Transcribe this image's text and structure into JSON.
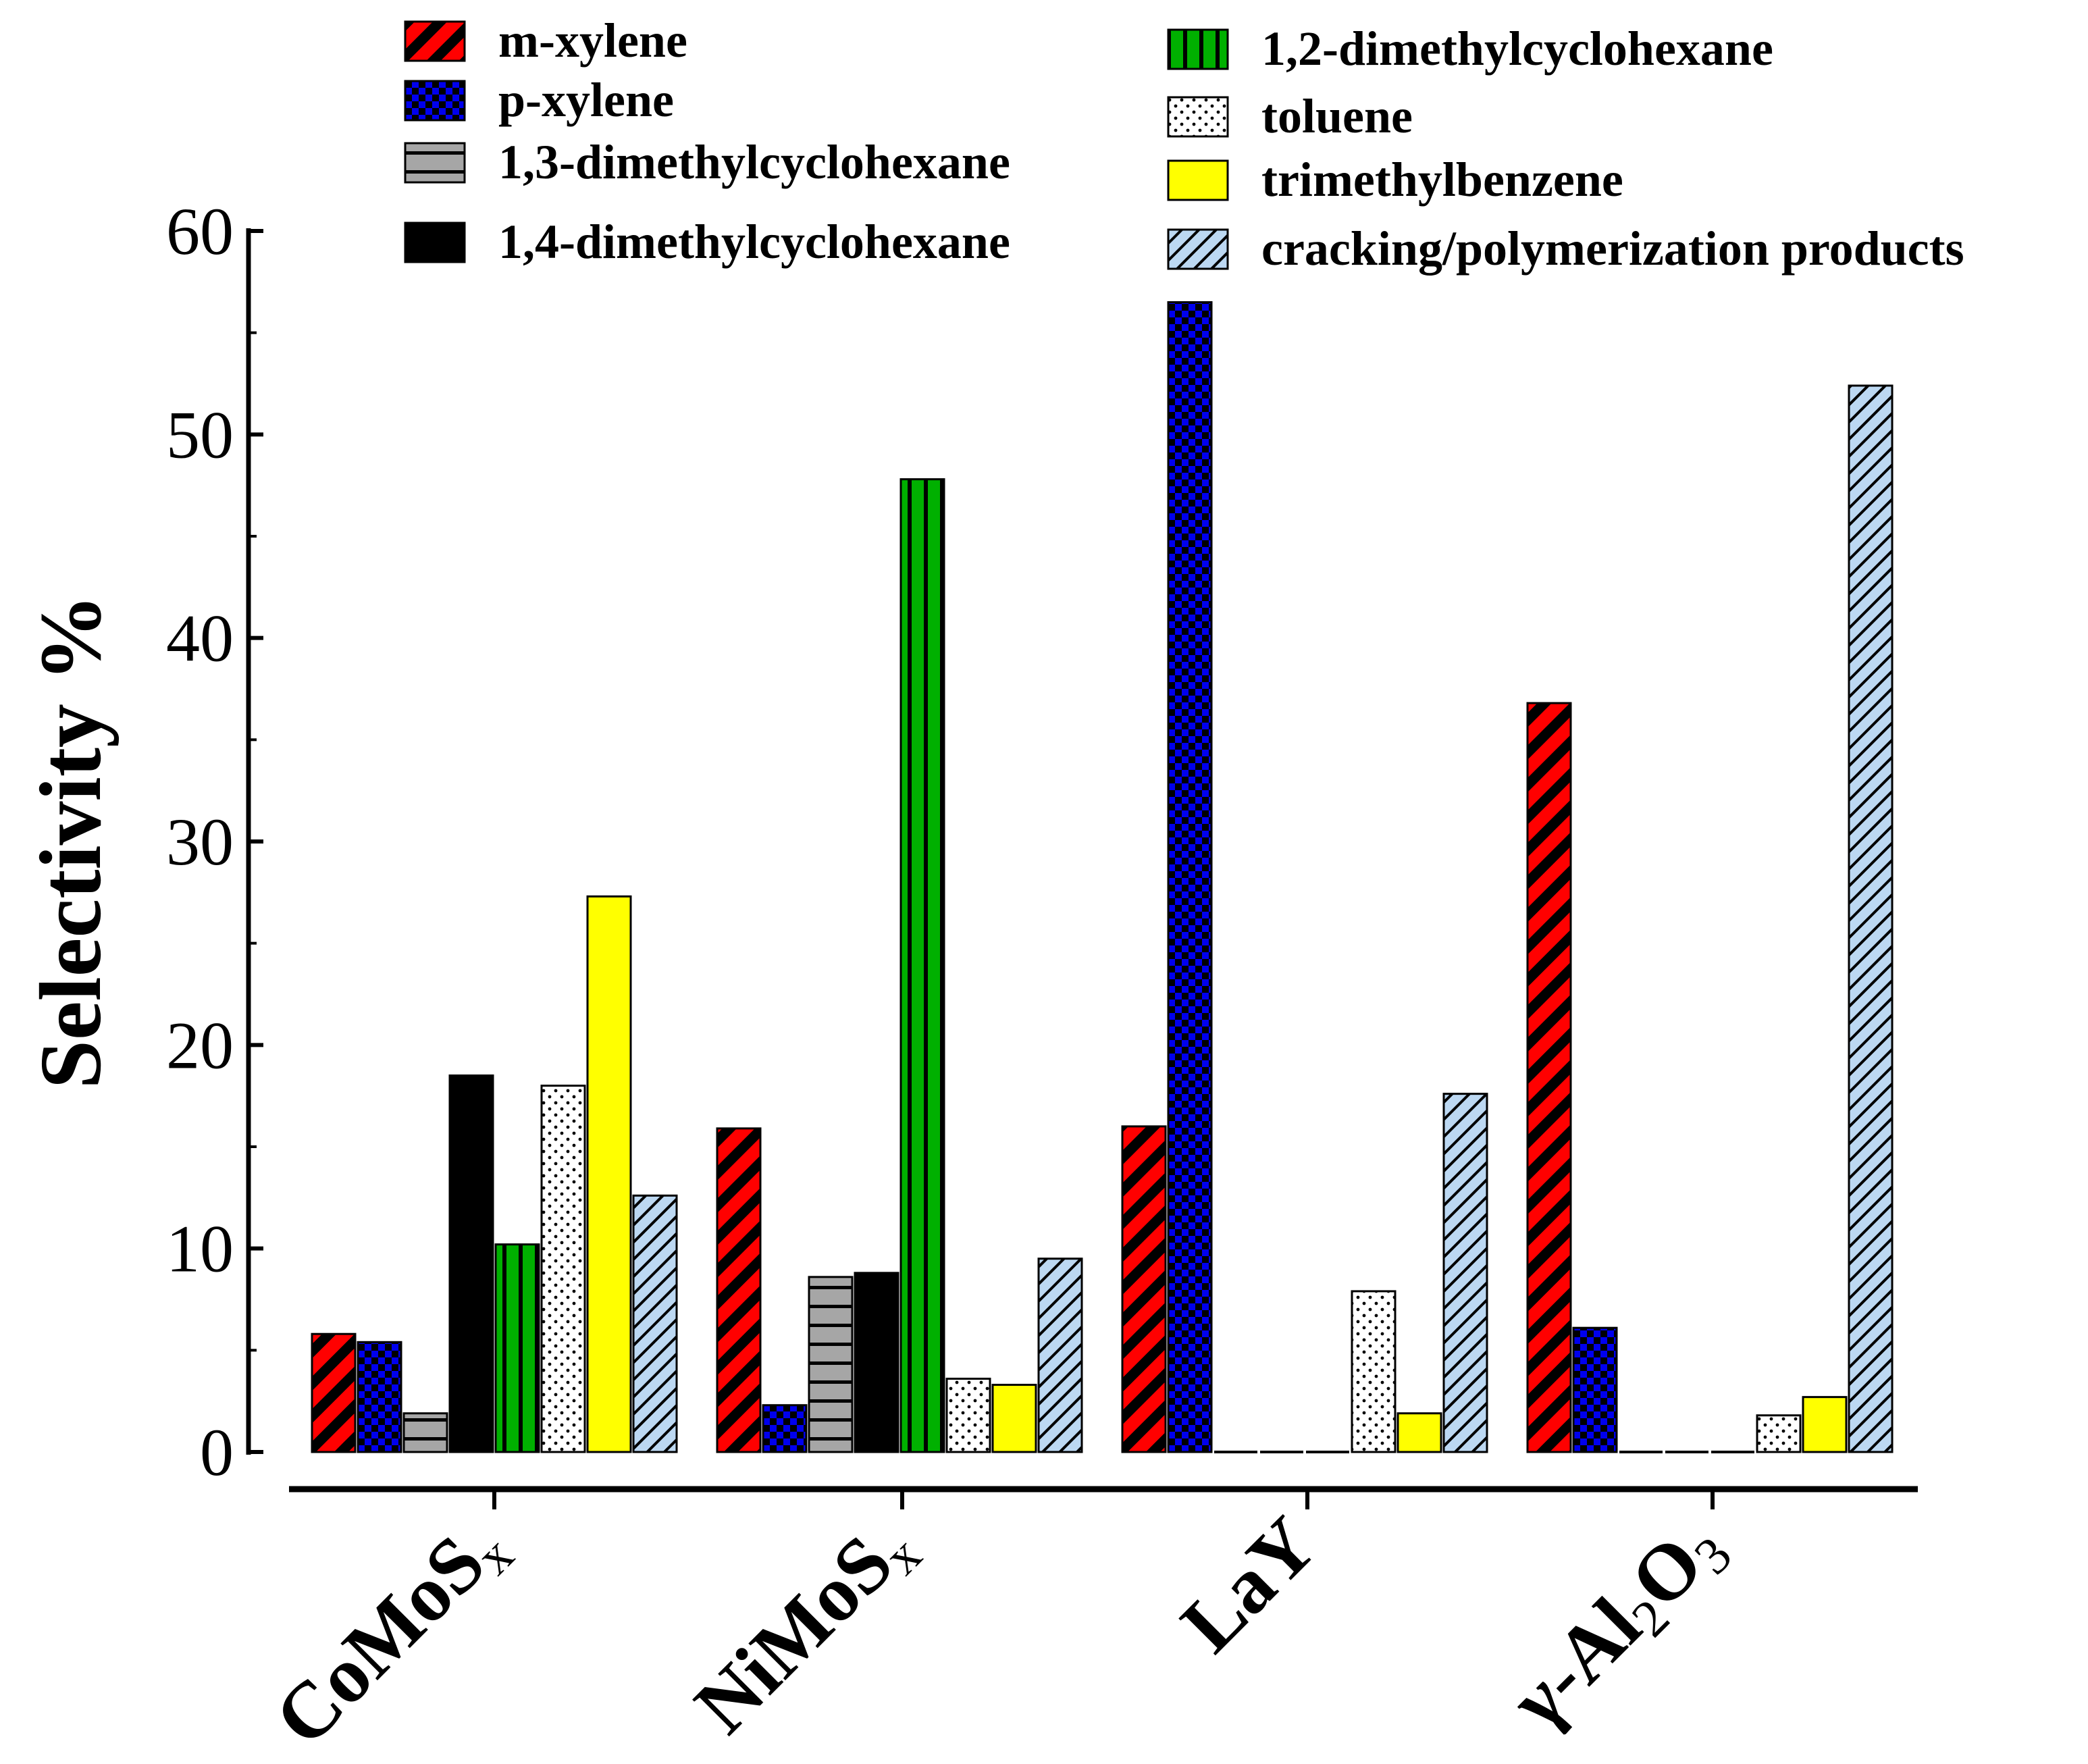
{
  "chart_data": {
    "type": "bar",
    "title": "",
    "xlabel": "",
    "ylabel": "Selectivity %",
    "ylim": [
      0,
      60
    ],
    "yticks": [
      0,
      10,
      20,
      30,
      40,
      50,
      60
    ],
    "grid": false,
    "legend_position": "top",
    "categories": [
      {
        "id": "CoMoSx",
        "base": "CoMoS",
        "sub": "x",
        "full": "CoMoSx"
      },
      {
        "id": "NiMoSx",
        "base": "NiMoS",
        "sub": "x",
        "full": "NiMoSx"
      },
      {
        "id": "LaY",
        "base": "LaY",
        "sub": "",
        "full": "LaY"
      },
      {
        "id": "gamma-Al2O3",
        "base": "γ-Al",
        "sub": "2",
        "base2": "O",
        "sub2": "3",
        "full": "γ-Al2O3"
      }
    ],
    "series": [
      {
        "name": "m-xylene",
        "color": "#ff0000",
        "pattern": "diag-stripe",
        "values": [
          5.8,
          15.9,
          16.0,
          36.8
        ]
      },
      {
        "name": "p-xylene",
        "color": "#0000ee",
        "pattern": "checker",
        "values": [
          5.4,
          2.3,
          56.5,
          6.1
        ]
      },
      {
        "name": "1,3-dimethylcyclohexane",
        "color": "#a6a6a6",
        "pattern": "horizontal",
        "values": [
          1.9,
          8.6,
          0,
          0
        ]
      },
      {
        "name": "1,4-dimethylcyclohexane",
        "color": "#000000",
        "pattern": "solid",
        "values": [
          18.5,
          8.8,
          0,
          0
        ]
      },
      {
        "name": "1,2-dimethylcyclohexane",
        "color": "#00b000",
        "pattern": "vertical",
        "values": [
          10.2,
          47.8,
          0,
          0
        ]
      },
      {
        "name": "toluene",
        "color": "#ffffff",
        "pattern": "dots",
        "values": [
          18.0,
          3.6,
          7.9,
          1.8
        ]
      },
      {
        "name": "trimethylbenzene",
        "color": "#ffff00",
        "pattern": "solid",
        "values": [
          27.3,
          3.3,
          1.9,
          2.7
        ]
      },
      {
        "name": "cracking/polymerization products",
        "color": "#bcd8f2",
        "pattern": "fine-diag",
        "values": [
          12.6,
          9.5,
          17.6,
          52.4
        ]
      }
    ]
  }
}
